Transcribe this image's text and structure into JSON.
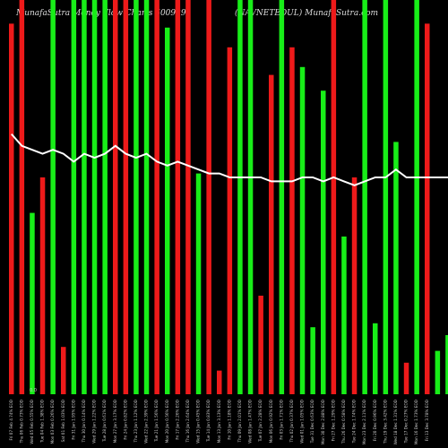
{
  "chart_data": {
    "type": "bar",
    "title_left": "MunafaSutra Money Flow  Charts 500929",
    "title_right": "(NAVNETEDUL) MunafaSutra.com",
    "ylim": [
      0,
      100
    ],
    "axis_label": "0.0",
    "colors": {
      "up": "#18ee18",
      "down": "#ee1a1a",
      "line": "#ffffff",
      "background": "#000000"
    },
    "categories": [
      "Fri 07 Feb 4.74% EOD",
      "Thu 06 Feb 0.73% EOD",
      "Wed 05 Feb 0.55% EOD",
      "Tue 04 Feb 1.38% EOD",
      "Mon 03 Feb 0.26% EOD",
      "Sat 01 Feb 1.03% EOD",
      "Fri 31 Jan 1.95% EOD",
      "Thu 30 Jan 0.14% EOD",
      "Wed 29 Jan 1.22% EOD",
      "Tue 28 Jan 0.61% EOD",
      "Mon 27 Jan 3.17% EOD",
      "Fri 24 Jan 0.82% EOD",
      "Thu 23 Jan 1.12% EOD",
      "Wed 22 Jan 2.39% EOD",
      "Tue 21 Jan 1.56% EOD",
      "Mon 20 Jan 0.56% EOD",
      "Fri 17 Jan 2.26% EOD",
      "Thu 16 Jan 2.64% EOD",
      "Wed 15 Jan 0.45% EOD",
      "Tue 14 Jan 0.83% EOD",
      "Mon 13 Jan 3.13% EOD",
      "Fri 10 Jan 1.18% EOD",
      "Thu 09 Jan 2.01% EOD",
      "Wed 08 Jan 1.47% EOD",
      "Tue 07 Jan 2.28% EOD",
      "Mon 06 Jan 0.92% EOD",
      "Fri 03 Jan 1.71% EOD",
      "Thu 02 Jan 0.37% EOD",
      "Wed 01 Jan 1.05% EOD",
      "Tue 31 Dec 0.63% EOD",
      "Mon 30 Dec 2.88% EOD",
      "Fri 27 Dec 1.29% EOD",
      "Thu 26 Dec 0.58% EOD",
      "Tue 24 Dec 1.74% EOD",
      "Mon 23 Dec 2.11% EOD",
      "Fri 20 Dec 0.96% EOD",
      "Thu 19 Dec 3.42% EOD",
      "Wed 18 Dec 1.31% EOD",
      "Tue 17 Dec 0.27% EOD",
      "Mon 16 Dec 1.73% EOD",
      "Fri 13 Dec 3.78% EOD"
    ],
    "values": [
      94,
      100,
      46,
      55,
      100,
      12,
      100,
      100,
      100,
      100,
      100,
      100,
      100,
      100,
      100,
      93,
      100,
      100,
      56,
      100,
      6,
      88,
      100,
      100,
      25,
      81,
      100,
      88,
      83,
      17,
      77,
      100,
      40,
      55,
      100,
      18,
      100,
      64,
      8,
      100,
      94
    ],
    "directions": [
      "down",
      "down",
      "up",
      "down",
      "up",
      "down",
      "up",
      "up",
      "up",
      "up",
      "down",
      "down",
      "up",
      "up",
      "down",
      "up",
      "down",
      "down",
      "up",
      "down",
      "down",
      "down",
      "up",
      "up",
      "down",
      "down",
      "up",
      "down",
      "up",
      "up",
      "up",
      "down",
      "up",
      "down",
      "up",
      "up",
      "up",
      "up",
      "down",
      "up",
      "down"
    ],
    "tail_bars": [
      {
        "value": 11,
        "direction": "up"
      },
      {
        "value": 15,
        "direction": "up"
      }
    ],
    "line_values": [
      66,
      63,
      62,
      61,
      62,
      61,
      59,
      61,
      60,
      61,
      63,
      61,
      60,
      61,
      59,
      58,
      59,
      58,
      57,
      56,
      56,
      55,
      55,
      55,
      55,
      54,
      54,
      54,
      55,
      55,
      54,
      55,
      54,
      53,
      54,
      55,
      55,
      57,
      55,
      55,
      55
    ]
  }
}
